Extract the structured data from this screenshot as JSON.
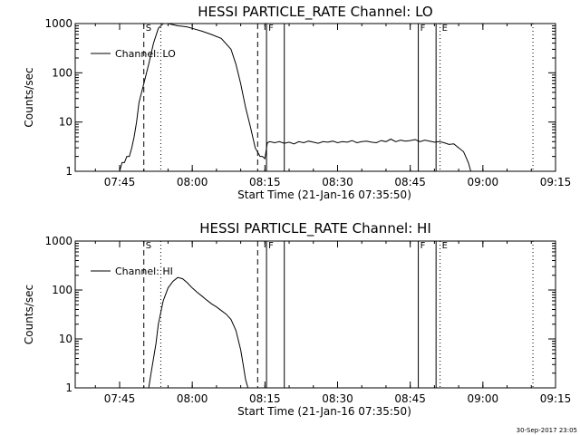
{
  "footer": {
    "timestamp": "30-Sep-2017 23:05"
  },
  "chart_data": [
    {
      "type": "line",
      "title": "HESSI PARTICLE_RATE Channel: LO",
      "xlabel": "Start Time (21-Jan-16 07:35:50)",
      "ylabel": "Counts/sec",
      "legend": "Channel: LO",
      "legend_position": "top-left",
      "y_scale": "log",
      "ylim": [
        1,
        1000
      ],
      "xlim": [
        "07:35:50",
        "09:15:00"
      ],
      "x_ticks": [
        "07:45",
        "08:00",
        "08:15",
        "08:30",
        "08:45",
        "09:00",
        "09:15"
      ],
      "y_ticks": [
        "1",
        "10",
        "100",
        "1000"
      ],
      "markers": [
        {
          "time": "07:50:00",
          "label": "S",
          "style": "dashed"
        },
        {
          "time": "07:53:30",
          "label": "",
          "style": "dotted"
        },
        {
          "time": "08:13:30",
          "label": "",
          "style": "dashed"
        },
        {
          "time": "08:15:20",
          "label": "F",
          "style": "solid"
        },
        {
          "time": "08:19:00",
          "label": "",
          "style": "solid"
        },
        {
          "time": "08:46:40",
          "label": "F",
          "style": "solid"
        },
        {
          "time": "08:50:20",
          "label": "",
          "style": "solid"
        },
        {
          "time": "08:51:10",
          "label": "E",
          "style": "dotted"
        },
        {
          "time": "09:10:20",
          "label": "",
          "style": "dotted"
        }
      ],
      "x": [
        "07:45:00",
        "07:45:30",
        "07:46:00",
        "07:46:30",
        "07:47:00",
        "07:47:30",
        "07:48:00",
        "07:48:30",
        "07:49:00",
        "07:50:00",
        "07:51:00",
        "07:52:00",
        "07:53:00",
        "07:54:00",
        "07:55:00",
        "07:56:00",
        "07:57:00",
        "07:58:00",
        "07:59:00",
        "08:00:00",
        "08:02:00",
        "08:04:00",
        "08:06:00",
        "08:08:00",
        "08:09:00",
        "08:10:00",
        "08:11:00",
        "08:12:00",
        "08:13:00",
        "08:14:00",
        "08:14:30",
        "08:15:00",
        "08:15:30",
        "08:16:00",
        "08:17:00",
        "08:18:00",
        "08:19:00",
        "08:20:00",
        "08:21:00",
        "08:22:00",
        "08:23:00",
        "08:24:00",
        "08:25:00",
        "08:26:00",
        "08:27:00",
        "08:28:00",
        "08:29:00",
        "08:30:00",
        "08:31:00",
        "08:32:00",
        "08:33:00",
        "08:34:00",
        "08:35:00",
        "08:36:00",
        "08:37:00",
        "08:38:00",
        "08:39:00",
        "08:40:00",
        "08:41:00",
        "08:42:00",
        "08:43:00",
        "08:44:00",
        "08:45:00",
        "08:46:00",
        "08:47:00",
        "08:48:00",
        "08:49:00",
        "08:50:00",
        "08:51:00",
        "08:52:00",
        "08:53:00",
        "08:54:00",
        "08:55:00",
        "08:56:00",
        "08:57:00",
        "08:57:30"
      ],
      "values": [
        1,
        1.5,
        1.5,
        2,
        2,
        3,
        5,
        10,
        25,
        60,
        150,
        400,
        800,
        1000,
        1000,
        950,
        900,
        880,
        850,
        800,
        700,
        600,
        500,
        300,
        150,
        60,
        20,
        8,
        3,
        2,
        2,
        1.8,
        3.8,
        4,
        3.8,
        4,
        3.7,
        3.9,
        3.6,
        4,
        3.8,
        4.1,
        3.9,
        3.7,
        4,
        3.9,
        4.1,
        3.8,
        4,
        3.9,
        4.2,
        3.8,
        4,
        4.1,
        3.9,
        3.8,
        4.2,
        4,
        4.5,
        4,
        4.3,
        4.1,
        4.2,
        4.4,
        4,
        4.3,
        4.1,
        3.9,
        4,
        3.8,
        3.5,
        3.6,
        3,
        2.5,
        1.5,
        1
      ]
    },
    {
      "type": "line",
      "title": "HESSI PARTICLE_RATE Channel: HI",
      "xlabel": "Start Time (21-Jan-16 07:35:50)",
      "ylabel": "Counts/sec",
      "legend": "Channel: HI",
      "legend_position": "top-left",
      "y_scale": "log",
      "ylim": [
        1,
        1000
      ],
      "xlim": [
        "07:35:50",
        "09:15:00"
      ],
      "x_ticks": [
        "07:45",
        "08:00",
        "08:15",
        "08:30",
        "08:45",
        "09:00",
        "09:15"
      ],
      "y_ticks": [
        "1",
        "10",
        "100",
        "1000"
      ],
      "markers": [
        {
          "time": "07:50:00",
          "label": "S",
          "style": "dashed"
        },
        {
          "time": "07:53:30",
          "label": "",
          "style": "dotted"
        },
        {
          "time": "08:13:30",
          "label": "",
          "style": "dashed"
        },
        {
          "time": "08:15:20",
          "label": "F",
          "style": "solid"
        },
        {
          "time": "08:19:00",
          "label": "",
          "style": "solid"
        },
        {
          "time": "08:46:40",
          "label": "F",
          "style": "solid"
        },
        {
          "time": "08:50:20",
          "label": "",
          "style": "solid"
        },
        {
          "time": "08:51:10",
          "label": "E",
          "style": "dotted"
        },
        {
          "time": "09:10:20",
          "label": "",
          "style": "dotted"
        }
      ],
      "x": [
        "07:51:00",
        "07:51:30",
        "07:52:00",
        "07:52:30",
        "07:53:00",
        "07:54:00",
        "07:55:00",
        "07:56:00",
        "07:57:00",
        "07:58:00",
        "07:59:00",
        "08:00:00",
        "08:01:00",
        "08:02:00",
        "08:03:00",
        "08:04:00",
        "08:05:00",
        "08:06:00",
        "08:07:00",
        "08:08:00",
        "08:09:00",
        "08:10:00",
        "08:10:30",
        "08:11:00",
        "08:11:30"
      ],
      "values": [
        1,
        2,
        4,
        8,
        20,
        60,
        110,
        150,
        180,
        170,
        140,
        110,
        90,
        75,
        62,
        52,
        45,
        38,
        32,
        25,
        15,
        6,
        3,
        1.5,
        1
      ]
    }
  ]
}
